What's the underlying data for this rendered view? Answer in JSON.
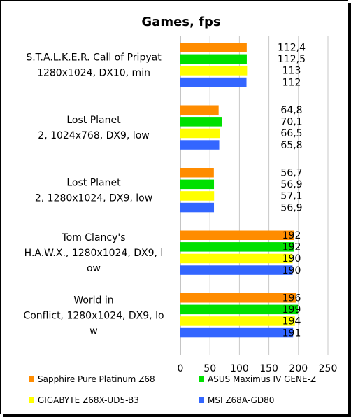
{
  "chart_data": {
    "type": "bar",
    "orientation": "horizontal",
    "title": "Games, fps",
    "categories": [
      [
        "S.T.A.L.K.E.R. Call of Pripyat",
        "1280x1024, DX10, min"
      ],
      [
        "Lost Planet",
        "2, 1024x768, DX9, low"
      ],
      [
        "Lost Planet",
        "2, 1280x1024, DX9, low"
      ],
      [
        "Tom Clancy's",
        "H.A.W.X., 1280x1024, DX9, l",
        "ow"
      ],
      [
        "World in",
        "Conflict, 1280x1024, DX9, lo",
        "w"
      ]
    ],
    "series": [
      {
        "name": "Sapphire Pure Platinum Z68",
        "color": "#ff8c00",
        "values": [
          112.4,
          64.8,
          56.7,
          192,
          196
        ],
        "labels": [
          "112,4",
          "64,8",
          "56,7",
          "192",
          "196"
        ]
      },
      {
        "name": "ASUS Maximus IV GENE-Z",
        "color": "#00e000",
        "values": [
          112.5,
          70.1,
          56.9,
          192,
          199
        ],
        "labels": [
          "112,5",
          "70,1",
          "56,9",
          "192",
          "199"
        ]
      },
      {
        "name": "GIGABYTE Z68X-UD5-B3",
        "color": "#ffff00",
        "values": [
          113,
          66.5,
          57.1,
          190,
          194
        ],
        "labels": [
          "113",
          "66,5",
          "57,1",
          "190",
          "194"
        ]
      },
      {
        "name": "MSI Z68A-GD80",
        "color": "#3366ff",
        "values": [
          112,
          65.8,
          56.9,
          190,
          191
        ],
        "labels": [
          "112",
          "65,8",
          "56,9",
          "190",
          "191"
        ]
      }
    ],
    "xlim": [
      0,
      250
    ],
    "xticks": [
      "0",
      "50",
      "100",
      "150",
      "200",
      "250"
    ],
    "grid": true,
    "legend": "bottom"
  }
}
